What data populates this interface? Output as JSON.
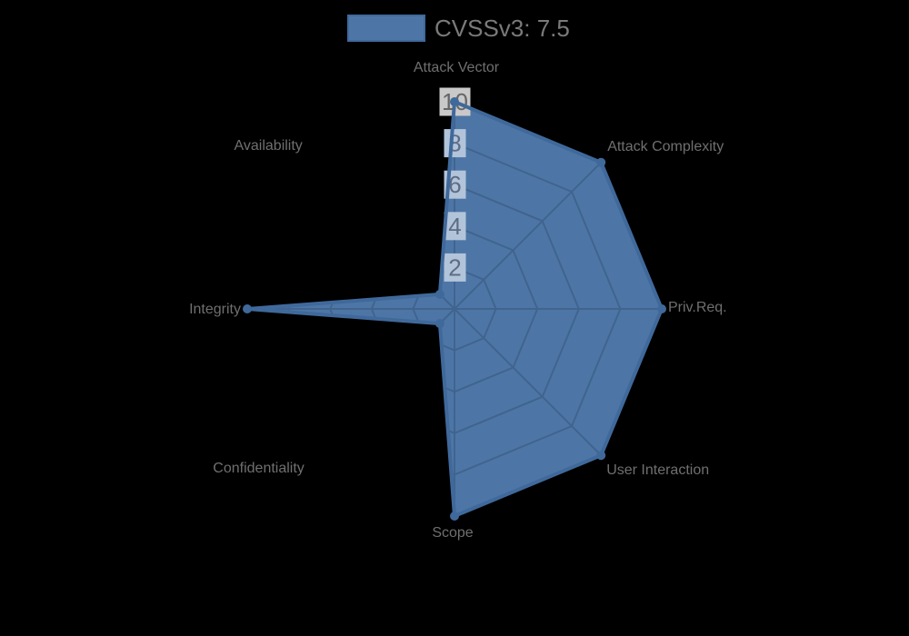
{
  "legend": {
    "label": "CVSSv3: 7.5"
  },
  "chart_data": {
    "type": "radar",
    "categories": [
      "Attack Vector",
      "Attack Complexity",
      "Priv.Req.",
      "User Interaction",
      "Scope",
      "Confidentiality",
      "Integrity",
      "Availability"
    ],
    "series": [
      {
        "name": "CVSSv3: 7.5",
        "values": [
          10,
          10,
          10,
          10,
          10,
          1,
          10,
          1
        ]
      }
    ],
    "rmin": 0,
    "rmax": 10,
    "ticks": [
      2,
      4,
      6,
      8,
      10
    ],
    "grid": true,
    "grid_shape": "polygon",
    "legend_position": "top",
    "colors": {
      "background": "#000000",
      "fill": "#4d76a6",
      "stroke": "#40699b",
      "grid": "#40648e",
      "tick_backdrop_over_fill": "#b2c4da",
      "tick_backdrop": "#c9c9c9",
      "tick_text_over_fill": "#5e6c84",
      "tick_text": "#666666",
      "axis_label": "#6f6f6f",
      "legend_text": "#7a7a7a"
    }
  }
}
